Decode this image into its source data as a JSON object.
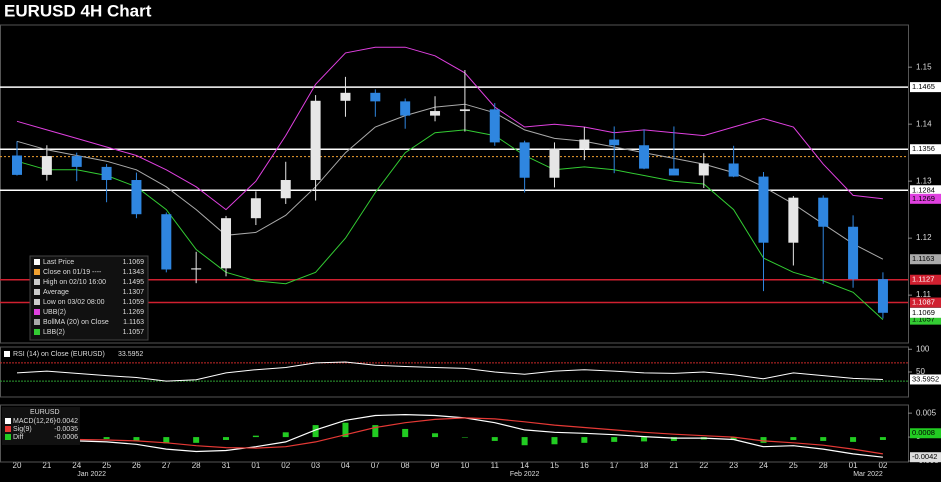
{
  "title": "EURUSD 4H Chart",
  "chart_data": [
    {
      "type": "candlestick",
      "categories": [
        "20",
        "21",
        "24",
        "25",
        "26",
        "27",
        "28",
        "31",
        "01",
        "02",
        "03",
        "04",
        "07",
        "08",
        "09",
        "10",
        "11",
        "14",
        "15",
        "16",
        "17",
        "18",
        "21",
        "22",
        "23",
        "24",
        "25",
        "28",
        "01",
        "02"
      ],
      "months": [
        "Jan 2022",
        "Feb 2022",
        "Mar 2022"
      ],
      "ylim": [
        1.1016,
        1.1574
      ],
      "yticks": [
        1.15,
        1.14,
        1.13,
        1.12,
        1.11
      ],
      "up_color": "#e6e6e6",
      "down_color": "#2f86e0",
      "open": [
        1.1345,
        1.1311,
        1.1344,
        1.1325,
        1.1302,
        1.1242,
        1.1145,
        1.1147,
        1.1235,
        1.127,
        1.1302,
        1.1441,
        1.1455,
        1.144,
        1.1415,
        1.1423,
        1.1426,
        1.1368,
        1.1306,
        1.1357,
        1.1373,
        1.1363,
        1.1322,
        1.131,
        1.1331,
        1.1308,
        1.1192,
        1.1271,
        1.122,
        1.1128
      ],
      "high": [
        1.137,
        1.1363,
        1.135,
        1.133,
        1.1315,
        1.1245,
        1.1176,
        1.1239,
        1.1282,
        1.1334,
        1.1451,
        1.1483,
        1.1461,
        1.1445,
        1.1449,
        1.1495,
        1.1437,
        1.1371,
        1.1368,
        1.1395,
        1.1396,
        1.1391,
        1.1396,
        1.1349,
        1.1362,
        1.1316,
        1.1274,
        1.1275,
        1.124,
        1.114
      ],
      "low": [
        1.131,
        1.1301,
        1.13,
        1.1263,
        1.1235,
        1.114,
        1.1121,
        1.1133,
        1.1223,
        1.126,
        1.1266,
        1.1413,
        1.1413,
        1.1392,
        1.1405,
        1.1387,
        1.1362,
        1.128,
        1.1289,
        1.1337,
        1.1314,
        1.1321,
        1.131,
        1.1288,
        1.1307,
        1.1107,
        1.1152,
        1.112,
        1.1113,
        1.1059
      ],
      "close": [
        1.1311,
        1.1344,
        1.1325,
        1.1302,
        1.1242,
        1.1145,
        1.1147,
        1.1235,
        1.127,
        1.1302,
        1.1441,
        1.1455,
        1.144,
        1.1415,
        1.1423,
        1.1426,
        1.1368,
        1.1306,
        1.1357,
        1.1373,
        1.1363,
        1.1322,
        1.131,
        1.1331,
        1.1308,
        1.1192,
        1.1271,
        1.122,
        1.1128,
        1.1069
      ],
      "stats": [
        {
          "label": "Last Price",
          "value": 1.1069,
          "color": "#ffffff"
        },
        {
          "label": "Close on 01/19 ----",
          "value": 1.1343,
          "color": "#f0a030"
        },
        {
          "label": "High on 02/10 16:00",
          "value": 1.1495,
          "color": "#cccccc"
        },
        {
          "label": "Average",
          "value": 1.1307,
          "color": "#cccccc"
        },
        {
          "label": "Low on 03/02 08:00",
          "value": 1.1059,
          "color": "#cccccc"
        }
      ],
      "series": [
        {
          "name": "UBB(2)",
          "color": "#e040e0",
          "last": 1.1269,
          "values": [
            1.1405,
            1.139,
            1.1375,
            1.136,
            1.1345,
            1.132,
            1.129,
            1.125,
            1.13,
            1.138,
            1.147,
            1.1525,
            1.1535,
            1.1535,
            1.152,
            1.149,
            1.143,
            1.1395,
            1.14,
            1.1395,
            1.1385,
            1.139,
            1.1385,
            1.138,
            1.1395,
            1.141,
            1.1395,
            1.133,
            1.1275,
            1.1269
          ]
        },
        {
          "name": "BollMA (20)  on Close",
          "color": "#aaaaaa",
          "last": 1.1163,
          "values": [
            1.137,
            1.1355,
            1.1345,
            1.1335,
            1.132,
            1.129,
            1.125,
            1.1205,
            1.121,
            1.124,
            1.129,
            1.135,
            1.1395,
            1.1415,
            1.143,
            1.1435,
            1.142,
            1.139,
            1.1375,
            1.137,
            1.136,
            1.135,
            1.134,
            1.133,
            1.1315,
            1.129,
            1.126,
            1.1225,
            1.119,
            1.1163
          ]
        },
        {
          "name": "LBB(2)",
          "color": "#33cc33",
          "last": 1.1057,
          "values": [
            1.1335,
            1.132,
            1.132,
            1.131,
            1.129,
            1.125,
            1.118,
            1.114,
            1.1125,
            1.112,
            1.114,
            1.12,
            1.128,
            1.135,
            1.1385,
            1.139,
            1.138,
            1.1345,
            1.132,
            1.1325,
            1.132,
            1.131,
            1.13,
            1.1295,
            1.125,
            1.1165,
            1.114,
            1.1125,
            1.1105,
            1.1057
          ]
        }
      ],
      "levels": [
        {
          "value": 1.1465,
          "color": "#ffffff"
        },
        {
          "value": 1.1356,
          "color": "#ffffff"
        },
        {
          "value": 1.1284,
          "color": "#ffffff"
        },
        {
          "value": 1.1127,
          "color": "#d02030"
        },
        {
          "value": 1.1087,
          "color": "#d02030"
        }
      ]
    },
    {
      "type": "line",
      "ylim": [
        -5,
        105
      ],
      "yticks": [
        100,
        50
      ],
      "ref_lines": [
        {
          "value": 70,
          "color": "#c62828"
        },
        {
          "value": 30,
          "color": "#2e9d32"
        }
      ],
      "series": [
        {
          "name": "RSI (14)  on Close (EURUSD)",
          "color": "#ffffff",
          "last": 33.5952,
          "values": [
            48,
            52,
            47,
            42,
            38,
            30,
            33,
            48,
            55,
            60,
            70,
            72,
            65,
            62,
            60,
            58,
            50,
            45,
            52,
            55,
            52,
            48,
            47,
            50,
            44,
            35,
            48,
            42,
            36,
            33.5952
          ]
        }
      ]
    },
    {
      "type": "macd",
      "heading": "EURUSD",
      "ylim": [
        -0.0052,
        0.0067
      ],
      "yticks": [
        0.005,
        0,
        -0.005
      ],
      "tags": [
        {
          "value": 0.0008,
          "color": "#22cc22"
        }
      ],
      "series": [
        {
          "name": "MACD(12,26)",
          "color": "#ffffff",
          "last": -0.0042,
          "values": [
            -0.0005,
            -0.0005,
            -0.0008,
            -0.001,
            -0.0015,
            -0.0025,
            -0.003,
            -0.0028,
            -0.002,
            -0.001,
            0.0015,
            0.0035,
            0.0045,
            0.0047,
            0.0045,
            0.004,
            0.003,
            0.0015,
            0.001,
            0.0008,
            0.0005,
            0.0001,
            -0.0002,
            -0.0002,
            -0.0005,
            -0.002,
            -0.0018,
            -0.0025,
            -0.0035,
            -0.0042
          ]
        },
        {
          "name": "Sig(9)",
          "color": "#e53935",
          "last": -0.0035,
          "values": [
            -0.0003,
            -0.0004,
            -0.0005,
            -0.0006,
            -0.0008,
            -0.0012,
            -0.0018,
            -0.0022,
            -0.0023,
            -0.002,
            -0.001,
            0.0005,
            0.002,
            0.003,
            0.0037,
            0.004,
            0.0038,
            0.0032,
            0.0025,
            0.002,
            0.0015,
            0.001,
            0.0006,
            0.0003,
            0.0,
            -0.0008,
            -0.0012,
            -0.0017,
            -0.0025,
            -0.0035
          ]
        },
        {
          "name": "Diff",
          "color": "#22cc22",
          "last": -0.0006,
          "values": [
            -0.0002,
            -0.0001,
            -0.0003,
            -0.0004,
            -0.0007,
            -0.0013,
            -0.0012,
            -0.0006,
            0.0003,
            0.001,
            0.0025,
            0.003,
            0.0025,
            0.0017,
            0.0008,
            0.0,
            -0.0008,
            -0.0017,
            -0.0015,
            -0.0012,
            -0.001,
            -0.0009,
            -0.0008,
            -0.0005,
            -0.0005,
            -0.0012,
            -0.0006,
            -0.0008,
            -0.001,
            -0.0006
          ]
        }
      ]
    }
  ]
}
